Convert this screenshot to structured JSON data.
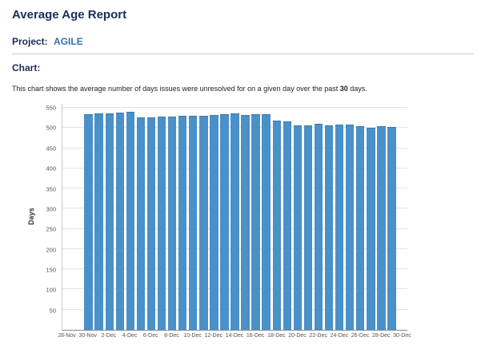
{
  "page": {
    "title": "Average Age Report",
    "project_label": "Project:",
    "project_name": "AGILE",
    "chart_label": "Chart:",
    "description_prefix": "This chart shows the average number of days issues were unresolved for on a given day over the past ",
    "description_bold": "30",
    "description_suffix": " days."
  },
  "chart_data": {
    "type": "bar",
    "title": "Average Age Report",
    "ylabel": "Days",
    "xlabel": "",
    "ylim": [
      0,
      560
    ],
    "yticks": [
      50,
      100,
      150,
      200,
      250,
      300,
      350,
      400,
      450,
      500,
      550
    ],
    "grid": "horizontal",
    "legend": "none",
    "bar_color": "#4a90c9",
    "total_slots": 33,
    "bar_start_slot": 2,
    "x_tick_labels": [
      "28-Nov",
      "30-Nov",
      "2-Dec",
      "4-Dec",
      "6-Dec",
      "8-Dec",
      "10-Dec",
      "12-Dec",
      "14-Dec",
      "16-Dec",
      "18-Dec",
      "20-Dec",
      "22-Dec",
      "24-Dec",
      "26-Dec",
      "28-Dec",
      "30-Dec"
    ],
    "categories": [
      "30-Nov",
      "1-Dec",
      "2-Dec",
      "3-Dec",
      "4-Dec",
      "5-Dec",
      "6-Dec",
      "7-Dec",
      "8-Dec",
      "9-Dec",
      "10-Dec",
      "11-Dec",
      "12-Dec",
      "13-Dec",
      "14-Dec",
      "15-Dec",
      "16-Dec",
      "17-Dec",
      "18-Dec",
      "19-Dec",
      "20-Dec",
      "21-Dec",
      "22-Dec",
      "23-Dec",
      "24-Dec",
      "25-Dec",
      "26-Dec",
      "27-Dec",
      "28-Dec",
      "29-Dec"
    ],
    "values": [
      535,
      536,
      537,
      538,
      540,
      527,
      526,
      528,
      529,
      530,
      530,
      531,
      532,
      534,
      536,
      532,
      534,
      535,
      518,
      516,
      507,
      506,
      510,
      507,
      508,
      509,
      504,
      500,
      504,
      503
    ]
  }
}
